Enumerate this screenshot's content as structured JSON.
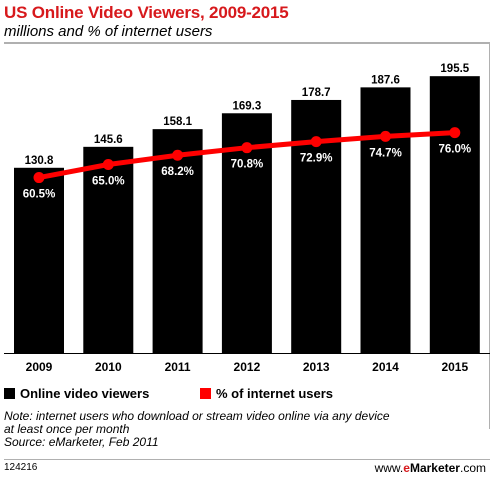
{
  "header": {
    "title": "US Online Video Viewers, 2009-2015",
    "subtitle": "millions and % of internet users"
  },
  "chart_data": {
    "type": "bar",
    "categories": [
      "2009",
      "2010",
      "2011",
      "2012",
      "2013",
      "2014",
      "2015"
    ],
    "series": [
      {
        "name": "Online video viewers",
        "kind": "bar",
        "color": "#000000",
        "values": [
          130.8,
          145.6,
          158.1,
          169.3,
          178.7,
          187.6,
          195.5
        ],
        "value_labels": [
          "130.8",
          "145.6",
          "158.1",
          "169.3",
          "178.7",
          "187.6",
          "195.5"
        ]
      },
      {
        "name": "% of internet users",
        "kind": "line",
        "color": "#ff0000",
        "values": [
          60.5,
          65.0,
          68.2,
          70.8,
          72.9,
          74.7,
          76.0
        ],
        "value_labels": [
          "60.5%",
          "65.0%",
          "68.2%",
          "70.8%",
          "72.9%",
          "74.7%",
          "76.0%"
        ]
      }
    ],
    "title": "US Online Video Viewers, 2009-2015",
    "subtitle": "millions and % of internet users",
    "ylim": [
      0,
      200
    ],
    "y2lim": [
      0,
      100
    ],
    "grid": false,
    "legend_position": "bottom-left"
  },
  "legend": [
    {
      "label": "Online video viewers",
      "color": "#000000"
    },
    {
      "label": "% of internet users",
      "color": "#ff0000"
    }
  ],
  "footer": {
    "note_line1": "Note: internet users who download or stream video online via any device",
    "note_line2": "at least once per month",
    "source": "Source: eMarketer, Feb 2011",
    "chart_id": "124216",
    "brand_prefix": "www.",
    "brand_e": "e",
    "brand_main": "Marketer",
    "brand_suffix": ".com"
  }
}
